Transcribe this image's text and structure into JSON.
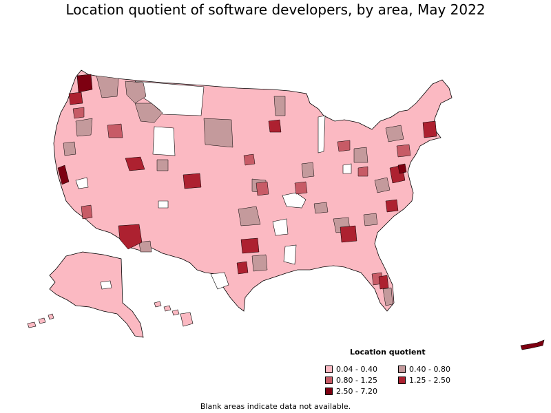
{
  "title": "Location quotient of software developers, by area, May 2022",
  "legend": {
    "title": "Location quotient",
    "items": [
      {
        "label": "0.04 - 0.40",
        "color": "#fbb9c2"
      },
      {
        "label": "0.40 - 0.80",
        "color": "#c49a9c"
      },
      {
        "label": "0.80 - 1.25",
        "color": "#c75b66"
      },
      {
        "label": "1.25 - 2.50",
        "color": "#ad2130"
      },
      {
        "label": "2.50 - 7.20",
        "color": "#7d0011"
      }
    ]
  },
  "note": "Blank areas indicate data not available.",
  "colors": {
    "border": "#000000",
    "blank": "#ffffff"
  }
}
